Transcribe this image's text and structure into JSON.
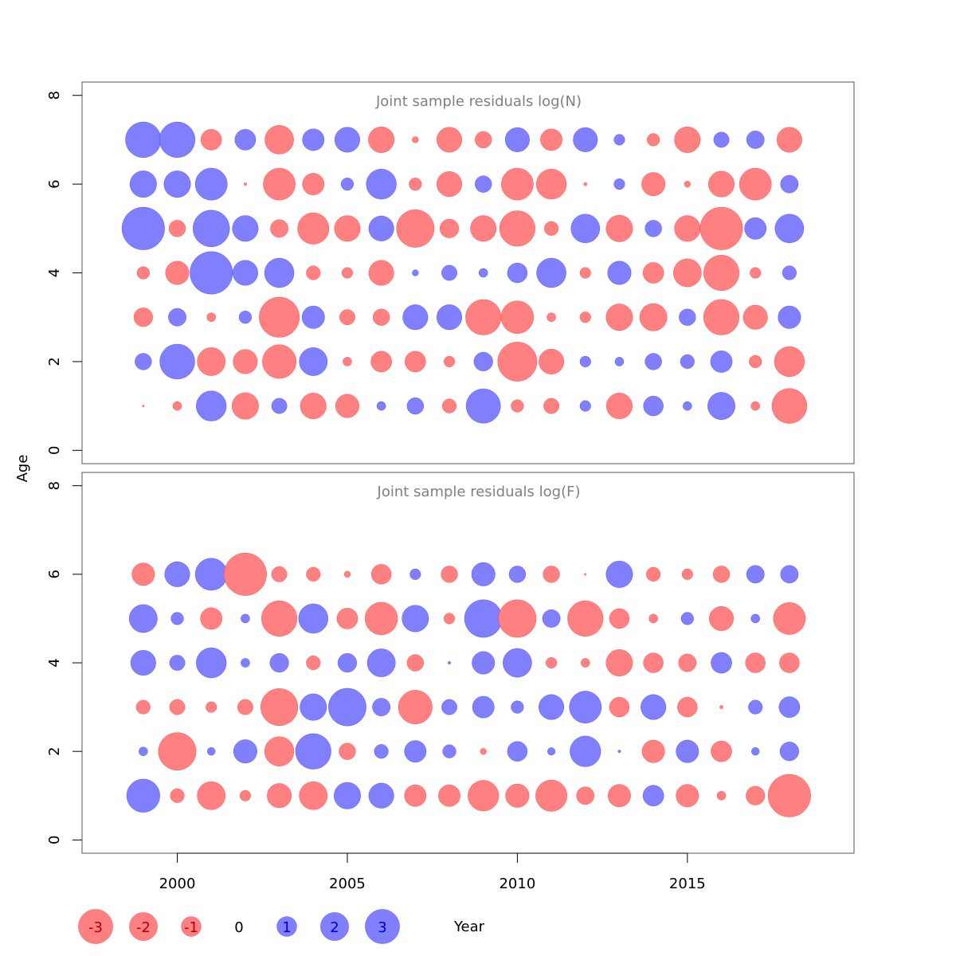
{
  "chart_data": {
    "type": "scatter",
    "subtype": "bubble-grid",
    "xlabel": "Year",
    "ylabel": "Age",
    "x_ticks": [
      2000,
      2005,
      2010,
      2015
    ],
    "y_ticks": [
      0,
      2,
      4,
      6,
      8
    ],
    "xlim": [
      1997.2,
      2019.9
    ],
    "ylim": [
      -0.3,
      8.3
    ],
    "years": [
      1999,
      2000,
      2001,
      2002,
      2003,
      2004,
      2005,
      2006,
      2007,
      2008,
      2009,
      2010,
      2011,
      2012,
      2013,
      2014,
      2015,
      2016,
      2017,
      2018
    ],
    "colors": {
      "positive": "#8080ff",
      "negative": "#ff8080",
      "positive_edge": "#0000ff",
      "negative_edge": "#ff0000",
      "frame": "#555555"
    },
    "legend": {
      "position": "bottom",
      "entries": [
        {
          "label": "-3",
          "value": -3
        },
        {
          "label": "-2",
          "value": -2
        },
        {
          "label": "-1",
          "value": -1
        },
        {
          "label": "0",
          "value": 0
        },
        {
          "label": "1",
          "value": 1
        },
        {
          "label": "2",
          "value": 2
        },
        {
          "label": "3",
          "value": 3
        }
      ]
    },
    "panels": [
      {
        "title": "Joint sample residuals log(N)",
        "ages": [
          1,
          2,
          3,
          4,
          5,
          6,
          7
        ],
        "residuals": {
          "7": [
            3.2,
            3.2,
            -1.1,
            1.1,
            -2.1,
            1.2,
            1.6,
            -1.7,
            -0.1,
            -1.6,
            -0.7,
            1.5,
            -1.2,
            1.5,
            0.3,
            -0.4,
            -1.7,
            0.6,
            0.8,
            -1.6
          ],
          "6": [
            1.8,
            1.8,
            2.6,
            -0.02,
            -2.6,
            -1.2,
            0.4,
            2.3,
            -0.4,
            -1.6,
            0.7,
            -2.6,
            -2.3,
            -0.03,
            0.3,
            -1.4,
            -0.1,
            -1.7,
            -2.6,
            0.8
          ],
          "5": [
            4.6,
            -0.7,
            3.4,
            1.7,
            -0.8,
            -2.5,
            -1.7,
            1.6,
            -3.6,
            -0.9,
            -1.7,
            -3.2,
            -0.5,
            2.1,
            -1.8,
            0.7,
            -1.7,
            -4.6,
            1.2,
            2.1
          ],
          "4": [
            -0.4,
            -1.4,
            4.6,
            1.6,
            2.2,
            -0.5,
            -0.3,
            -1.6,
            0.1,
            0.6,
            0.2,
            1.0,
            2.2,
            -0.3,
            1.4,
            -1.1,
            -2.0,
            -3.2,
            -0.3,
            0.5
          ],
          "3": [
            -0.9,
            0.8,
            -0.2,
            0.4,
            -4.1,
            1.3,
            -0.6,
            -0.7,
            1.6,
            1.6,
            -3.2,
            -2.7,
            -0.2,
            -0.3,
            -1.8,
            -1.9,
            0.7,
            -3.2,
            -1.5,
            1.3
          ],
          "2": [
            0.7,
            3.1,
            -2.0,
            -1.5,
            -2.9,
            2.0,
            -0.2,
            -1.1,
            -1.1,
            -0.3,
            0.9,
            -3.9,
            -1.6,
            0.3,
            0.2,
            0.7,
            0.5,
            1.2,
            -0.4,
            -2.3
          ],
          "1": [
            -0.01,
            -0.2,
            2.3,
            -1.8,
            0.6,
            -1.7,
            -1.4,
            0.2,
            0.7,
            -0.5,
            3.0,
            -0.4,
            -0.6,
            0.3,
            -1.7,
            1.0,
            0.2,
            1.9,
            -0.2,
            -3.1
          ]
        }
      },
      {
        "title": "Joint sample residuals log(F)",
        "ages": [
          1,
          2,
          3,
          4,
          5,
          6
        ],
        "residuals": {
          "6": [
            -1.3,
            1.6,
            2.6,
            -4.6,
            -0.6,
            -0.5,
            -0.1,
            -1.0,
            0.3,
            -0.7,
            1.4,
            0.7,
            -0.7,
            -0.01,
            1.8,
            -0.5,
            -0.3,
            -0.7,
            0.8,
            0.8
          ],
          "5": [
            2.0,
            0.4,
            -1.2,
            0.2,
            -3.2,
            2.2,
            -1.1,
            -2.7,
            1.8,
            -0.3,
            3.6,
            -3.6,
            0.8,
            -3.2,
            -1.0,
            -0.2,
            0.4,
            -1.5,
            0.2,
            -2.6
          ],
          "4": [
            1.6,
            0.6,
            2.3,
            0.2,
            0.9,
            -0.5,
            0.9,
            2.0,
            -0.7,
            0.02,
            1.3,
            2.1,
            -0.3,
            -0.2,
            -1.8,
            -1.0,
            -0.8,
            1.1,
            -1.0,
            -1.0
          ],
          "3": [
            -0.5,
            -0.6,
            -0.3,
            -0.6,
            -3.5,
            1.8,
            3.6,
            0.8,
            -2.9,
            0.6,
            1.2,
            0.4,
            1.6,
            2.6,
            -1.0,
            1.6,
            -1.0,
            -0.03,
            0.5,
            1.1
          ],
          "2": [
            0.2,
            -3.6,
            0.16,
            1.4,
            -2.2,
            3.2,
            -0.7,
            0.5,
            1.2,
            0.45,
            -0.1,
            1.0,
            0.15,
            2.4,
            0.02,
            -1.3,
            1.3,
            -1.1,
            0.16,
            0.9
          ],
          "1": [
            2.8,
            -0.5,
            -2.0,
            -0.3,
            -1.5,
            -2.0,
            1.8,
            1.6,
            -1.2,
            -1.2,
            -2.4,
            -1.4,
            -2.5,
            -0.8,
            -1.3,
            1.1,
            -1.3,
            -0.2,
            -0.9,
            -4.6
          ]
        }
      }
    ]
  }
}
